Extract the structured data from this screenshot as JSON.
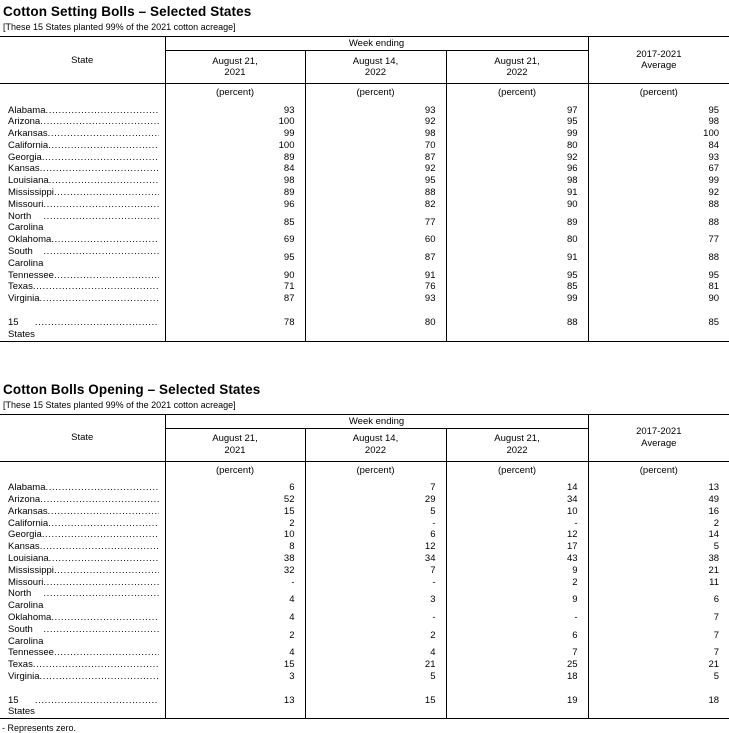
{
  "footnote": "- Represents zero.",
  "tables": [
    {
      "title": "Cotton Setting Bolls – Selected States",
      "subtitle": "[These 15 States planted 99% of the 2021 cotton acreage]",
      "header": {
        "state": "State",
        "week_ending": "Week ending",
        "dates": [
          {
            "l1": "August 21,",
            "l2": "2021"
          },
          {
            "l1": "August 14,",
            "l2": "2022"
          },
          {
            "l1": "August 21,",
            "l2": "2022"
          }
        ],
        "average": {
          "l1": "2017-2021",
          "l2": "Average"
        },
        "unit": "(percent)"
      },
      "rows": [
        {
          "state": "Alabama",
          "v1": "93",
          "v2": "93",
          "v3": "97",
          "v4": "95"
        },
        {
          "state": "Arizona",
          "v1": "100",
          "v2": "92",
          "v3": "95",
          "v4": "98"
        },
        {
          "state": "Arkansas",
          "v1": "99",
          "v2": "98",
          "v3": "99",
          "v4": "100"
        },
        {
          "state": "California",
          "v1": "100",
          "v2": "70",
          "v3": "80",
          "v4": "84"
        },
        {
          "state": "Georgia",
          "v1": "89",
          "v2": "87",
          "v3": "92",
          "v4": "93"
        },
        {
          "state": "Kansas",
          "v1": "84",
          "v2": "92",
          "v3": "96",
          "v4": "67"
        },
        {
          "state": "Louisiana",
          "v1": "98",
          "v2": "95",
          "v3": "98",
          "v4": "99"
        },
        {
          "state": "Mississippi",
          "v1": "89",
          "v2": "88",
          "v3": "91",
          "v4": "92"
        },
        {
          "state": "Missouri",
          "v1": "96",
          "v2": "82",
          "v3": "90",
          "v4": "88"
        },
        {
          "state": "North Carolina",
          "v1": "85",
          "v2": "77",
          "v3": "89",
          "v4": "88"
        },
        {
          "state": "Oklahoma",
          "v1": "69",
          "v2": "60",
          "v3": "80",
          "v4": "77"
        },
        {
          "state": "South Carolina",
          "v1": "95",
          "v2": "87",
          "v3": "91",
          "v4": "88"
        },
        {
          "state": "Tennessee",
          "v1": "90",
          "v2": "91",
          "v3": "95",
          "v4": "95"
        },
        {
          "state": "Texas",
          "v1": "71",
          "v2": "76",
          "v3": "85",
          "v4": "81"
        },
        {
          "state": "Virginia",
          "v1": "87",
          "v2": "93",
          "v3": "99",
          "v4": "90"
        }
      ],
      "total": {
        "state": "15 States",
        "v1": "78",
        "v2": "80",
        "v3": "88",
        "v4": "85"
      }
    },
    {
      "title": "Cotton Bolls Opening – Selected States",
      "subtitle": "[These 15 States planted 99% of the 2021 cotton acreage]",
      "header": {
        "state": "State",
        "week_ending": "Week ending",
        "dates": [
          {
            "l1": "August 21,",
            "l2": "2021"
          },
          {
            "l1": "August 14,",
            "l2": "2022"
          },
          {
            "l1": "August 21,",
            "l2": "2022"
          }
        ],
        "average": {
          "l1": "2017-2021",
          "l2": "Average"
        },
        "unit": "(percent)"
      },
      "rows": [
        {
          "state": "Alabama",
          "v1": "6",
          "v2": "7",
          "v3": "14",
          "v4": "13"
        },
        {
          "state": "Arizona",
          "v1": "52",
          "v2": "29",
          "v3": "34",
          "v4": "49"
        },
        {
          "state": "Arkansas",
          "v1": "15",
          "v2": "5",
          "v3": "10",
          "v4": "16"
        },
        {
          "state": "California",
          "v1": "2",
          "v2": "-",
          "v3": "-",
          "v4": "2"
        },
        {
          "state": "Georgia",
          "v1": "10",
          "v2": "6",
          "v3": "12",
          "v4": "14"
        },
        {
          "state": "Kansas",
          "v1": "8",
          "v2": "12",
          "v3": "17",
          "v4": "5"
        },
        {
          "state": "Louisiana",
          "v1": "38",
          "v2": "34",
          "v3": "43",
          "v4": "38"
        },
        {
          "state": "Mississippi",
          "v1": "32",
          "v2": "7",
          "v3": "9",
          "v4": "21"
        },
        {
          "state": "Missouri",
          "v1": "-",
          "v2": "-",
          "v3": "2",
          "v4": "11"
        },
        {
          "state": "North Carolina",
          "v1": "4",
          "v2": "3",
          "v3": "9",
          "v4": "6"
        },
        {
          "state": "Oklahoma",
          "v1": "4",
          "v2": "-",
          "v3": "-",
          "v4": "7"
        },
        {
          "state": "South Carolina",
          "v1": "2",
          "v2": "2",
          "v3": "6",
          "v4": "7"
        },
        {
          "state": "Tennessee",
          "v1": "4",
          "v2": "4",
          "v3": "7",
          "v4": "7"
        },
        {
          "state": "Texas",
          "v1": "15",
          "v2": "21",
          "v3": "25",
          "v4": "21"
        },
        {
          "state": "Virginia",
          "v1": "3",
          "v2": "5",
          "v3": "18",
          "v4": "5"
        }
      ],
      "total": {
        "state": "15 States",
        "v1": "13",
        "v2": "15",
        "v3": "19",
        "v4": "18"
      }
    }
  ]
}
